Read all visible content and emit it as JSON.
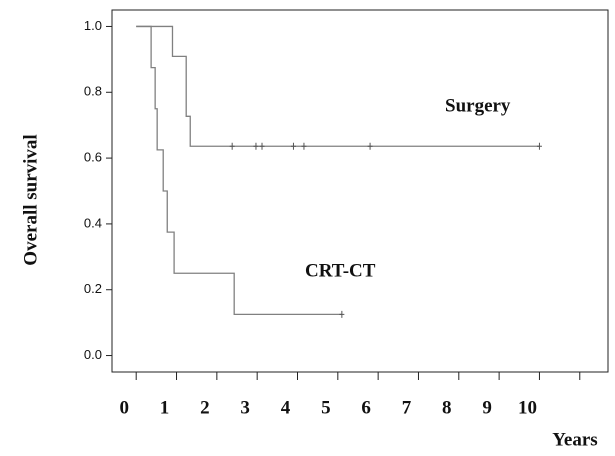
{
  "chart_data": {
    "type": "step",
    "xlabel": "Years",
    "ylabel": "Overall survival",
    "xlim": [
      -0.6,
      11.7
    ],
    "ylim": [
      -0.05,
      1.05
    ],
    "xticks": [
      0,
      1,
      2,
      3,
      4,
      5,
      6,
      7,
      8,
      9,
      10,
      {
        "value": 11,
        "label": null
      }
    ],
    "yticks": [
      {
        "value": 0,
        "label": "0.0"
      },
      {
        "value": 0.2,
        "label": "0.2"
      },
      {
        "value": 0.4,
        "label": "0.4"
      },
      {
        "value": 0.6,
        "label": "0.6"
      },
      {
        "value": 0.8,
        "label": "0.8"
      },
      {
        "value": 1,
        "label": "1.0"
      }
    ],
    "series": [
      {
        "name": "Surgery",
        "color": "#808080",
        "x": [
          0,
          0.9,
          1.24,
          1.34,
          10.0
        ],
        "values": [
          1,
          0.909,
          0.727,
          0.636,
          0.636
        ],
        "censored_x": [
          2.38,
          2.97,
          3.12,
          3.9,
          4.16,
          5.8,
          10.0
        ],
        "censored_values": [
          0.636,
          0.636,
          0.636,
          0.636,
          0.636,
          0.636,
          0.636
        ]
      },
      {
        "name": "CRT-CT",
        "color": "#808080",
        "x": [
          0,
          0.37,
          0.47,
          0.52,
          0.67,
          0.77,
          0.94,
          2.43,
          5.1
        ],
        "values": [
          1,
          0.875,
          0.75,
          0.625,
          0.5,
          0.375,
          0.25,
          0.125,
          0.125
        ],
        "censored_x": [
          5.1
        ],
        "censored_values": [
          0.125
        ]
      }
    ]
  }
}
